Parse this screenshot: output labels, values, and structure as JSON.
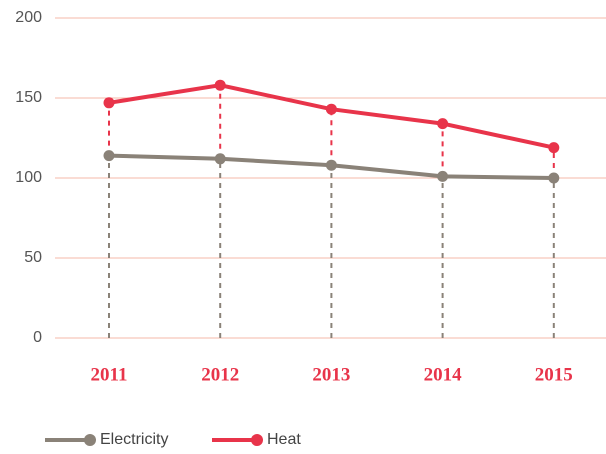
{
  "chart_data": {
    "type": "line",
    "categories": [
      "2011",
      "2012",
      "2013",
      "2014",
      "2015"
    ],
    "series": [
      {
        "name": "Electricity",
        "color": "#8a8278",
        "values": [
          114,
          112,
          108,
          101,
          100
        ]
      },
      {
        "name": "Heat",
        "color": "#e8344a",
        "values": [
          147,
          158,
          143,
          134,
          119
        ]
      }
    ],
    "ylim": [
      0,
      200
    ],
    "yticks": [
      0,
      50,
      100,
      150,
      200
    ],
    "grid": true,
    "grid_color": "#f4b9a9",
    "legend": "bottom"
  }
}
